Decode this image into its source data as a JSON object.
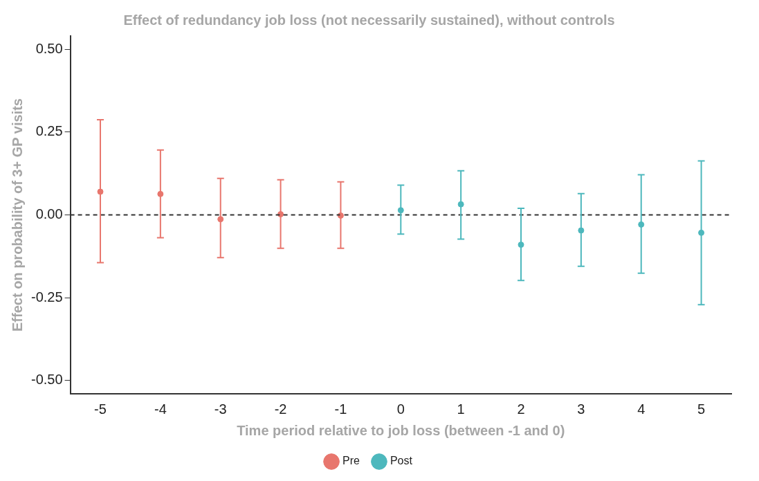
{
  "chart_data": {
    "type": "scatter",
    "title": "Effect of redundancy job loss (not necessarily sustained), without controls",
    "xlabel": "Time period relative to job loss (between -1 and 0)",
    "ylabel": "Effect on probability of 3+ GP visits",
    "categories": [
      "-5",
      "-4",
      "-3",
      "-2",
      "-1",
      "0",
      "1",
      "2",
      "3",
      "4",
      "5"
    ],
    "series": [
      {
        "name": "Pre",
        "color": "#e8766d",
        "values": [
          0.07,
          0.063,
          -0.013,
          0.002,
          -0.002,
          null,
          null,
          null,
          null,
          null,
          null
        ],
        "errors": [
          [
            -0.144,
            0.287
          ],
          [
            -0.069,
            0.196
          ],
          [
            -0.129,
            0.11
          ],
          [
            -0.101,
            0.106
          ],
          [
            -0.101,
            0.1
          ],
          null,
          null,
          null,
          null,
          null,
          null
        ]
      },
      {
        "name": "Post",
        "color": "#4db8bd",
        "values": [
          null,
          null,
          null,
          null,
          null,
          0.014,
          0.032,
          -0.09,
          -0.047,
          -0.029,
          -0.054
        ],
        "errors": [
          null,
          null,
          null,
          null,
          null,
          [
            -0.058,
            0.09
          ],
          [
            -0.073,
            0.133
          ],
          [
            -0.198,
            0.02
          ],
          [
            -0.155,
            0.064
          ],
          [
            -0.176,
            0.121
          ],
          [
            -0.271,
            0.163
          ]
        ]
      }
    ],
    "ylim": [
      -0.54,
      0.54
    ],
    "yticks": [
      {
        "value": -0.5,
        "label": "-0.50"
      },
      {
        "value": -0.25,
        "label": "-0.25"
      },
      {
        "value": 0,
        "label": "0.00"
      },
      {
        "value": 0.25,
        "label": "0.25"
      },
      {
        "value": 0.5,
        "label": "0.50"
      }
    ],
    "ref_lines": [
      {
        "axis": "y",
        "value": 0,
        "color": "#333333",
        "line_style": "dashed"
      }
    ],
    "marker": "circle",
    "grid": false,
    "legend": "bottom"
  }
}
